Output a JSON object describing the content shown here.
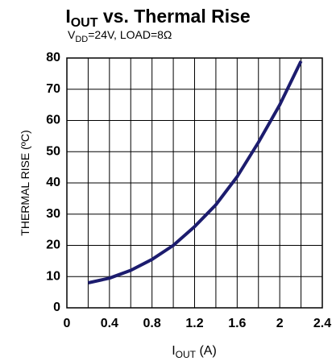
{
  "chart_data": {
    "type": "line",
    "title": [
      "I",
      "OUT",
      " vs. Thermal Rise"
    ],
    "subtitle": [
      "V",
      "DD",
      "=24V, LOAD=8Ω"
    ],
    "x_label": [
      "I",
      "OUT",
      " (A)"
    ],
    "y_label": "THERMAL RISE (ºC)",
    "x": [
      0.2,
      0.4,
      0.6,
      0.8,
      1.0,
      1.2,
      1.3,
      1.4,
      1.6,
      1.8,
      2.0,
      2.2
    ],
    "series": [
      {
        "color": "#1c1c6e",
        "values": [
          8,
          9.5,
          12,
          15.5,
          20,
          26,
          29.5,
          33,
          42,
          53,
          65,
          79
        ]
      }
    ],
    "xlim": [
      0,
      2.4
    ],
    "ylim": [
      0,
      80
    ],
    "xticks": [
      0,
      0.4,
      0.8,
      1.2,
      1.6,
      2,
      2.4
    ],
    "xminorticks": [
      0.2,
      0.6,
      1.0,
      1.4,
      1.8,
      2.2
    ],
    "yticks": [
      0,
      10,
      20,
      30,
      40,
      50,
      60,
      70,
      80
    ],
    "grid": true
  }
}
